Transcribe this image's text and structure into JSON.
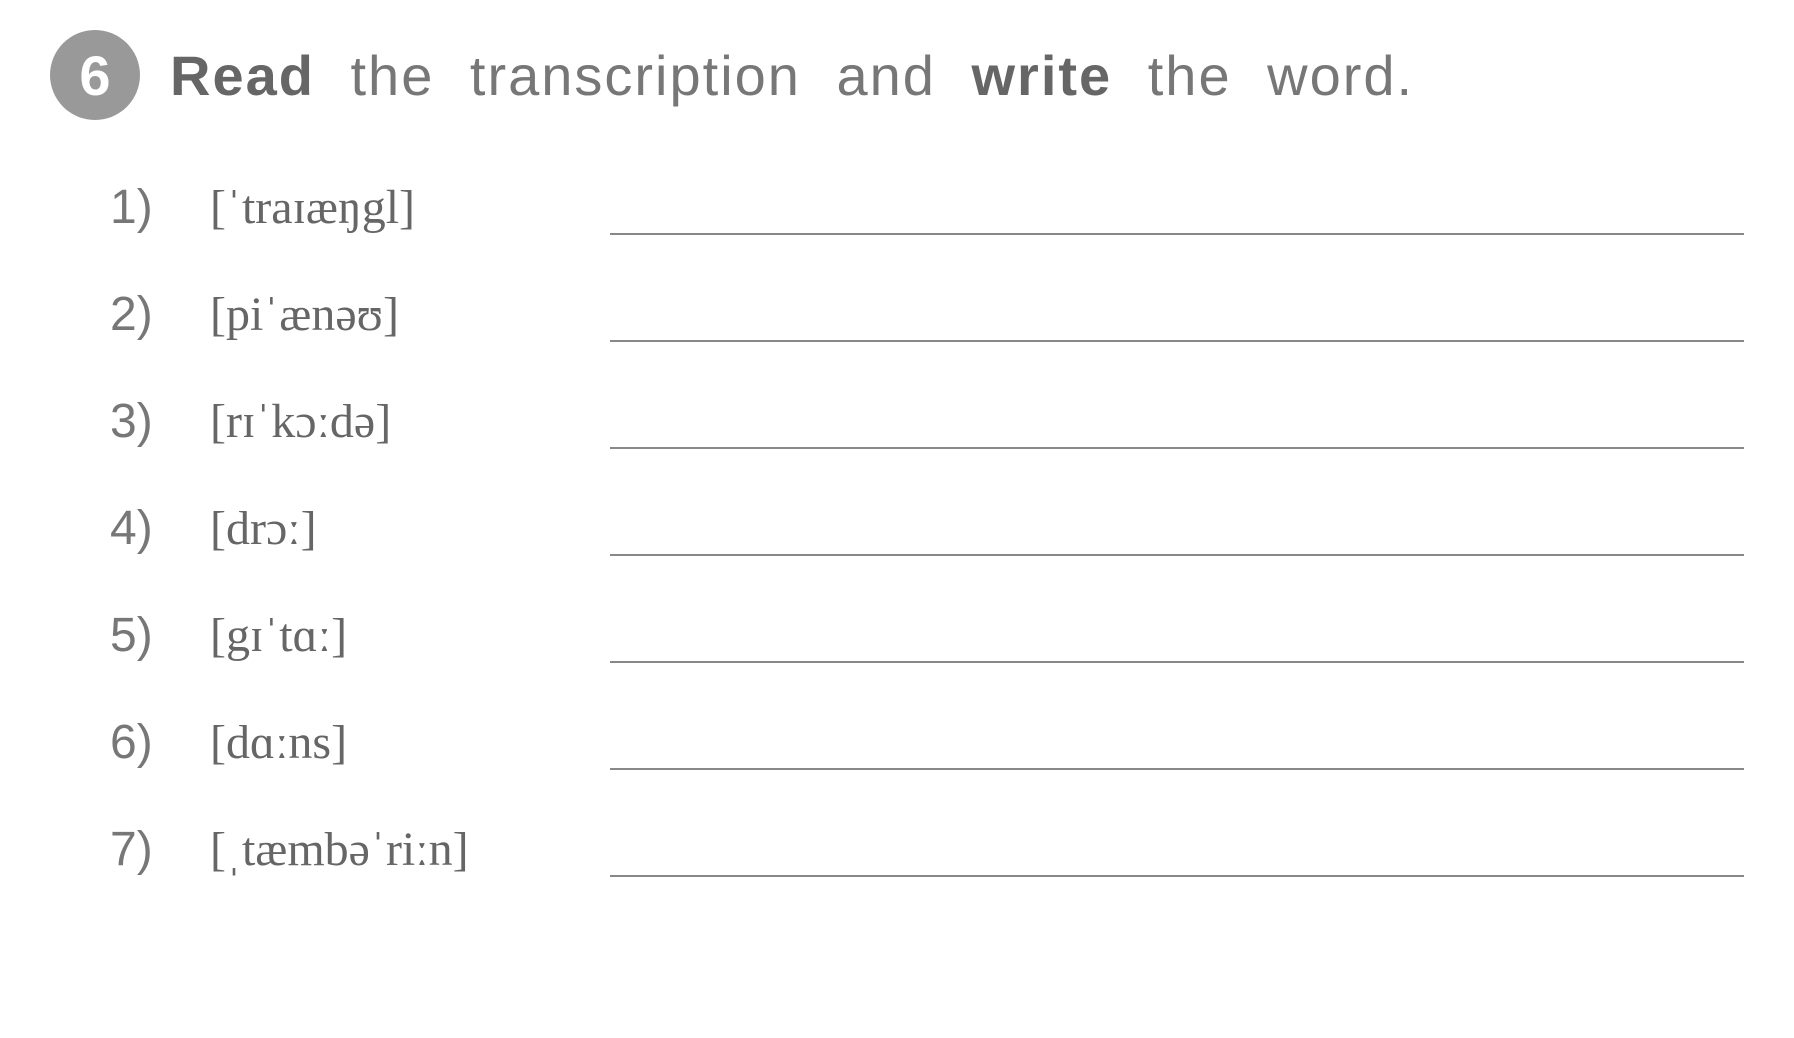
{
  "exercise": {
    "number": "6",
    "instruction_parts": {
      "read": "Read",
      "middle1": " the transcription and ",
      "write": "write",
      "middle2": " the word."
    }
  },
  "items": [
    {
      "num": "1)",
      "ipa": "[ˈtraɪæŋgl]"
    },
    {
      "num": "2)",
      "ipa": "[piˈænəʊ]"
    },
    {
      "num": "3)",
      "ipa": "[rɪˈkɔːdə]"
    },
    {
      "num": "4)",
      "ipa": "[drɔː]"
    },
    {
      "num": "5)",
      "ipa": "[gɪˈtɑː]"
    },
    {
      "num": "6)",
      "ipa": "[dɑːns]"
    },
    {
      "num": "7)",
      "ipa": "[ˌtæmbəˈriːn]"
    }
  ],
  "styling": {
    "badge_background": "#999999",
    "badge_text_color": "#ffffff",
    "instruction_color": "#777777",
    "transcription_color": "#666666",
    "line_color": "#888888",
    "background_color": "#ffffff",
    "badge_fontsize": 56,
    "instruction_fontsize": 56,
    "item_fontsize": 48
  }
}
